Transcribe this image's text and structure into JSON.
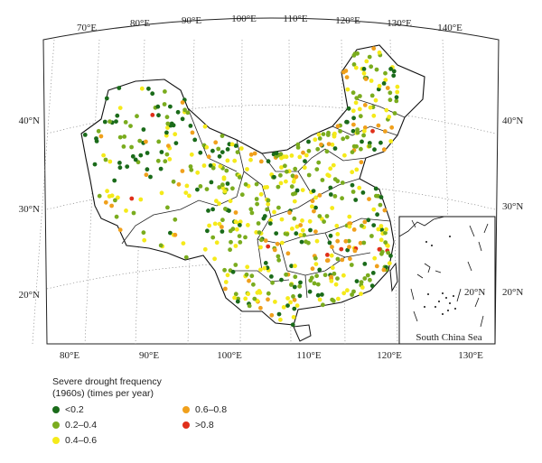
{
  "map": {
    "top_lon_labels": [
      "70°E",
      "80°E",
      "90°E",
      "100°E",
      "110°E",
      "120°E",
      "130°E",
      "140°E"
    ],
    "bottom_lon_labels": [
      "80°E",
      "90°E",
      "100°E",
      "110°E",
      "120°E",
      "130°E"
    ],
    "left_lat_labels": [
      "40°N",
      "30°N",
      "20°N"
    ],
    "right_lat_labels": [
      "40°N",
      "30°N",
      "20°N"
    ],
    "inset_lat_label": "20°N",
    "inset_label": "South China Sea"
  },
  "legend": {
    "title_line1": "Severe drought frequency",
    "title_line2": "(1960s) (times per year)",
    "items": [
      {
        "label": "<0.2",
        "color": "#1a6b1a"
      },
      {
        "label": "0.2–0.4",
        "color": "#7aac1e"
      },
      {
        "label": "0.4–0.6",
        "color": "#f5ea1a"
      },
      {
        "label": "0.6–0.8",
        "color": "#f0a01c"
      },
      {
        "label": ">0.8",
        "color": "#e02f1a"
      }
    ]
  }
}
